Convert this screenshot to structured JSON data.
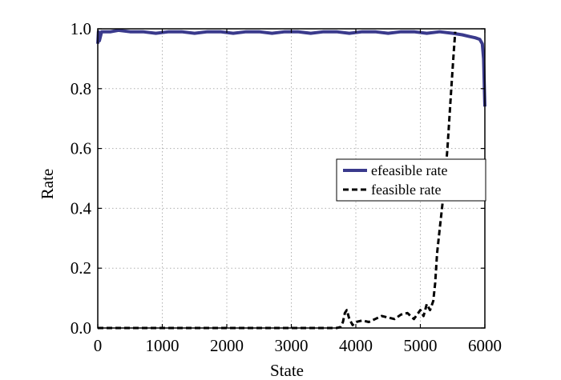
{
  "chart_data": {
    "type": "line",
    "title": "",
    "xlabel": "State",
    "ylabel": "Rate",
    "xlim": [
      0,
      6000
    ],
    "ylim": [
      0,
      1.0
    ],
    "x_ticks": [
      0,
      1000,
      2000,
      3000,
      4000,
      5000,
      6000
    ],
    "x_tick_labels": [
      "0",
      "1000",
      "2000",
      "3000",
      "4000",
      "5000",
      "6000"
    ],
    "y_ticks": [
      0,
      0.2,
      0.4,
      0.6,
      0.8,
      1.0
    ],
    "y_tick_labels": [
      "0.0",
      "0.2",
      "0.4",
      "0.6",
      "0.8",
      "1.0"
    ],
    "grid": true,
    "legend_position": "center-right",
    "series": [
      {
        "name": "efeasible rate",
        "color": "#3a3a8c",
        "style": "solid",
        "x": [
          0,
          10,
          25,
          60,
          120,
          200,
          320,
          500,
          700,
          900,
          1100,
          1300,
          1500,
          1700,
          1900,
          2100,
          2300,
          2500,
          2700,
          2900,
          3100,
          3300,
          3500,
          3700,
          3900,
          4100,
          4300,
          4500,
          4700,
          4900,
          5100,
          5300,
          5500,
          5650,
          5750,
          5850,
          5920,
          5960,
          5980,
          6000
        ],
        "y": [
          0.95,
          0.99,
          0.96,
          0.99,
          0.99,
          0.99,
          0.995,
          0.99,
          0.99,
          0.985,
          0.99,
          0.99,
          0.985,
          0.99,
          0.99,
          0.985,
          0.99,
          0.99,
          0.985,
          0.99,
          0.99,
          0.985,
          0.99,
          0.99,
          0.985,
          0.99,
          0.99,
          0.985,
          0.99,
          0.99,
          0.985,
          0.99,
          0.985,
          0.98,
          0.975,
          0.97,
          0.965,
          0.95,
          0.9,
          0.74
        ]
      },
      {
        "name": "feasible rate",
        "color": "#000000",
        "style": "dashed",
        "x": [
          0,
          1000,
          2000,
          3000,
          3700,
          3760,
          3800,
          3830,
          3860,
          3900,
          3950,
          4000,
          4100,
          4200,
          4300,
          4400,
          4500,
          4600,
          4700,
          4800,
          4900,
          5000,
          5050,
          5100,
          5150,
          5200,
          5230,
          5260,
          5300,
          5330,
          5360,
          5390,
          5420,
          5450,
          5480,
          5510,
          5540
        ],
        "y": [
          0.0,
          0.0,
          0.0,
          0.0,
          0.0,
          0.003,
          0.02,
          0.05,
          0.06,
          0.03,
          0.01,
          0.02,
          0.025,
          0.02,
          0.03,
          0.04,
          0.035,
          0.03,
          0.045,
          0.05,
          0.03,
          0.06,
          0.04,
          0.08,
          0.06,
          0.09,
          0.15,
          0.25,
          0.33,
          0.39,
          0.45,
          0.52,
          0.6,
          0.7,
          0.8,
          0.9,
          0.99
        ]
      }
    ]
  }
}
